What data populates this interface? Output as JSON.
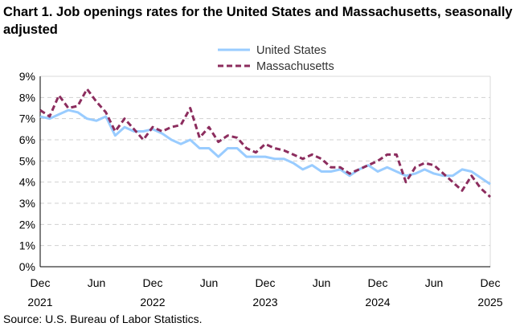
{
  "chart_data": {
    "type": "line",
    "title": "Chart 1. Job openings rates for the United States and Massachusetts, seasonally adjusted",
    "source": "Source: U.S. Bureau of Labor Statistics.",
    "x_tick_labels": [
      [
        "Dec",
        "2021"
      ],
      [
        "Jun",
        ""
      ],
      [
        "Dec",
        "2022"
      ],
      [
        "Jun",
        ""
      ],
      [
        "Dec",
        "2023"
      ],
      [
        "Jun",
        ""
      ],
      [
        "Dec",
        "2024"
      ],
      [
        "Jun",
        ""
      ],
      [
        "Dec",
        "2025"
      ]
    ],
    "y_tick_labels": [
      "0%",
      "1%",
      "2%",
      "3%",
      "4%",
      "5%",
      "6%",
      "7%",
      "8%",
      "9%"
    ],
    "ylim": [
      0,
      9
    ],
    "x_range": [
      "Dec 2021",
      "Dec 2025"
    ],
    "grid": "horizontal dashed",
    "legend_placement": "top-center",
    "series": [
      {
        "name": "United States",
        "color": "#99ccff",
        "style": "solid",
        "values": [
          7.1,
          7.0,
          7.2,
          7.4,
          7.3,
          7.0,
          6.9,
          7.1,
          6.2,
          6.6,
          6.4,
          6.4,
          6.5,
          6.3,
          6.0,
          5.8,
          6.0,
          5.6,
          5.6,
          5.2,
          5.6,
          5.6,
          5.2,
          5.2,
          5.2,
          5.1,
          5.1,
          4.9,
          4.6,
          4.8,
          4.5,
          4.5,
          4.6,
          4.3,
          4.6,
          4.8,
          4.5,
          4.7,
          4.5,
          4.3,
          4.4,
          4.6,
          4.4,
          4.3,
          4.3,
          4.6,
          4.5,
          4.2,
          3.9
        ]
      },
      {
        "name": "Massachusetts",
        "color": "#8c2d5e",
        "style": "dashed",
        "values": [
          7.4,
          7.1,
          8.1,
          7.5,
          7.6,
          8.4,
          7.8,
          7.3,
          6.4,
          7.0,
          6.5,
          6.0,
          6.6,
          6.4,
          6.6,
          6.7,
          7.5,
          6.1,
          6.6,
          5.9,
          6.2,
          6.1,
          5.6,
          5.4,
          5.8,
          5.6,
          5.5,
          5.3,
          5.1,
          5.3,
          5.1,
          4.7,
          4.7,
          4.4,
          4.6,
          4.8,
          5.0,
          5.3,
          5.3,
          4.0,
          4.7,
          4.9,
          4.8,
          4.4,
          4.0,
          3.6,
          4.3,
          3.7,
          3.3
        ]
      }
    ]
  }
}
